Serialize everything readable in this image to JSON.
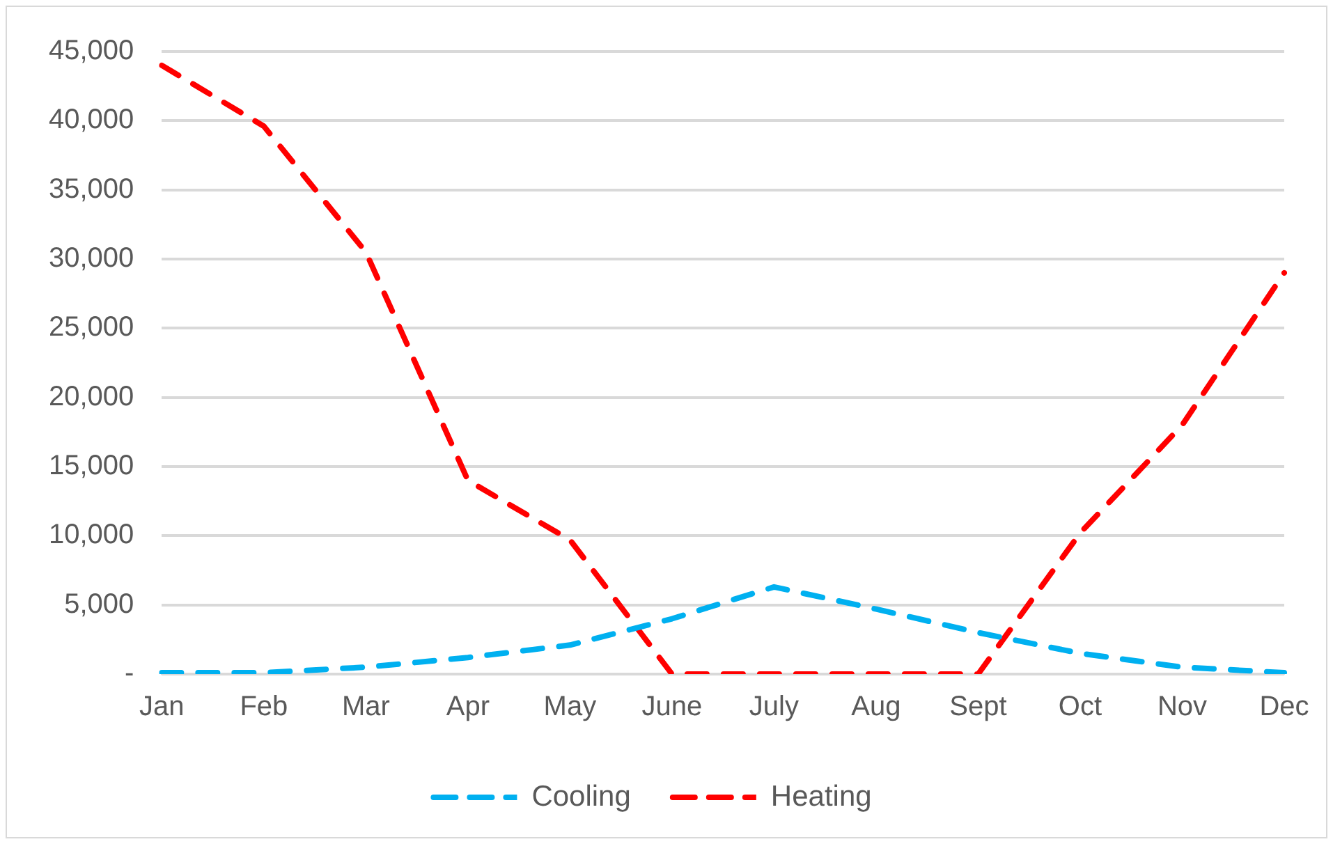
{
  "chart_data": {
    "type": "line",
    "categories": [
      "Jan",
      "Feb",
      "Mar",
      "Apr",
      "May",
      "June",
      "July",
      "Aug",
      "Sept",
      "Oct",
      "Nov",
      "Dec"
    ],
    "series": [
      {
        "name": "Cooling",
        "color": "#00b0f0",
        "values": [
          100,
          100,
          500,
          1200,
          2100,
          4000,
          6300,
          4700,
          3000,
          1500,
          500,
          100
        ]
      },
      {
        "name": "Heating",
        "color": "#ff0000",
        "values": [
          44000,
          39600,
          30500,
          14000,
          9700,
          0,
          0,
          0,
          0,
          10200,
          18000,
          29000
        ]
      }
    ],
    "ylim": [
      0,
      45000
    ],
    "yticks": [
      {
        "value": 0,
        "label": "-"
      },
      {
        "value": 5000,
        "label": "5,000"
      },
      {
        "value": 10000,
        "label": "10,000"
      },
      {
        "value": 15000,
        "label": "15,000"
      },
      {
        "value": 20000,
        "label": "20,000"
      },
      {
        "value": 25000,
        "label": "25,000"
      },
      {
        "value": 30000,
        "label": "30,000"
      },
      {
        "value": 35000,
        "label": "35,000"
      },
      {
        "value": 40000,
        "label": "40,000"
      },
      {
        "value": 45000,
        "label": "45,000"
      }
    ],
    "grid": "y",
    "legend": "bottom",
    "line_style": "dashed",
    "marker": "none"
  }
}
